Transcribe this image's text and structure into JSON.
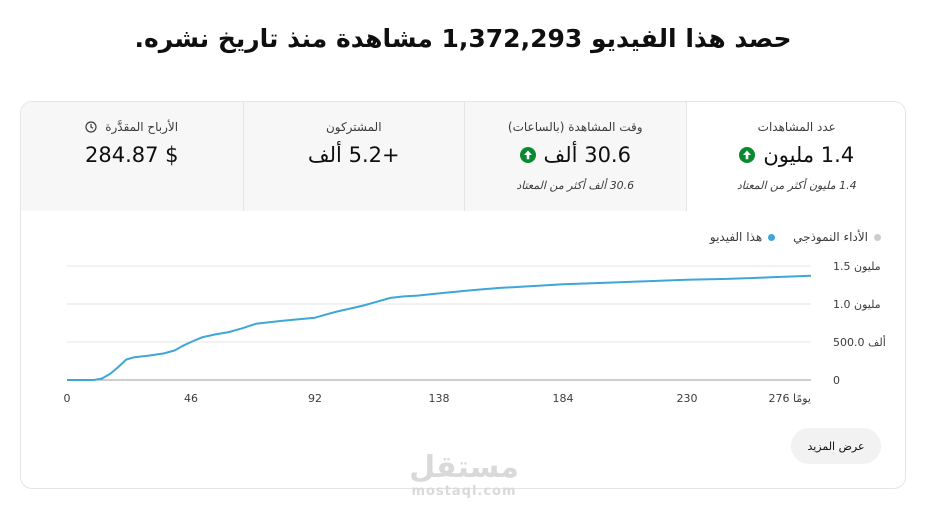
{
  "headline": "حصد هذا الفيديو 1,372,293 مشاهدة منذ تاريخ نشره.",
  "tabs": [
    {
      "label": "عدد المشاهدات",
      "value": "1.4 مليون",
      "note": "1.4 مليون أكثر من المعتاد",
      "trend": "up",
      "active": true
    },
    {
      "label": "وقت المشاهدة (بالساعات)",
      "value": "30.6 ألف",
      "note": "30.6 ألف أكثر من المعتاد",
      "trend": "up",
      "active": false
    },
    {
      "label": "المشتركون",
      "value": "+5.2 ألف",
      "note": "",
      "active": false
    },
    {
      "label": "الأرباح المقدَّرة",
      "value": "$ 284.87",
      "note": "",
      "icon": "clock-icon",
      "active": false
    }
  ],
  "legend": {
    "this_video": "هذا الفيديو",
    "typical": "الأداء النموذجي",
    "this_video_color": "#3ea6d8",
    "typical_color": "#cccccc"
  },
  "chart_data": {
    "type": "line",
    "x_ticks": [
      "0",
      "46",
      "92",
      "138",
      "184",
      "230",
      "276 يومًا"
    ],
    "y_ticks": [
      "0",
      "500.0 ألف",
      "1.0 مليون",
      "1.5 مليون"
    ],
    "xlim": [
      0,
      276
    ],
    "ylim": [
      0,
      1500000
    ],
    "series": [
      {
        "name": "هذا الفيديو",
        "color": "#3ea6d8",
        "x": [
          0,
          6,
          10,
          13,
          16,
          19,
          22,
          25,
          30,
          36,
          40,
          43,
          46,
          50,
          55,
          60,
          65,
          70,
          75,
          80,
          86,
          92,
          96,
          100,
          105,
          110,
          115,
          120,
          125,
          130,
          138,
          150,
          160,
          170,
          184,
          200,
          215,
          230,
          245,
          260,
          276
        ],
        "y": [
          0,
          0,
          0,
          20000,
          80000,
          170000,
          270000,
          300000,
          320000,
          350000,
          390000,
          450000,
          500000,
          560000,
          600000,
          630000,
          680000,
          740000,
          760000,
          780000,
          800000,
          820000,
          860000,
          900000,
          940000,
          980000,
          1030000,
          1080000,
          1100000,
          1110000,
          1140000,
          1180000,
          1210000,
          1230000,
          1260000,
          1280000,
          1300000,
          1320000,
          1330000,
          1350000,
          1372293
        ]
      }
    ]
  },
  "more_button": "عرض المزيد",
  "watermark": {
    "logo": "مستقل",
    "sub": "mostaql.com"
  }
}
